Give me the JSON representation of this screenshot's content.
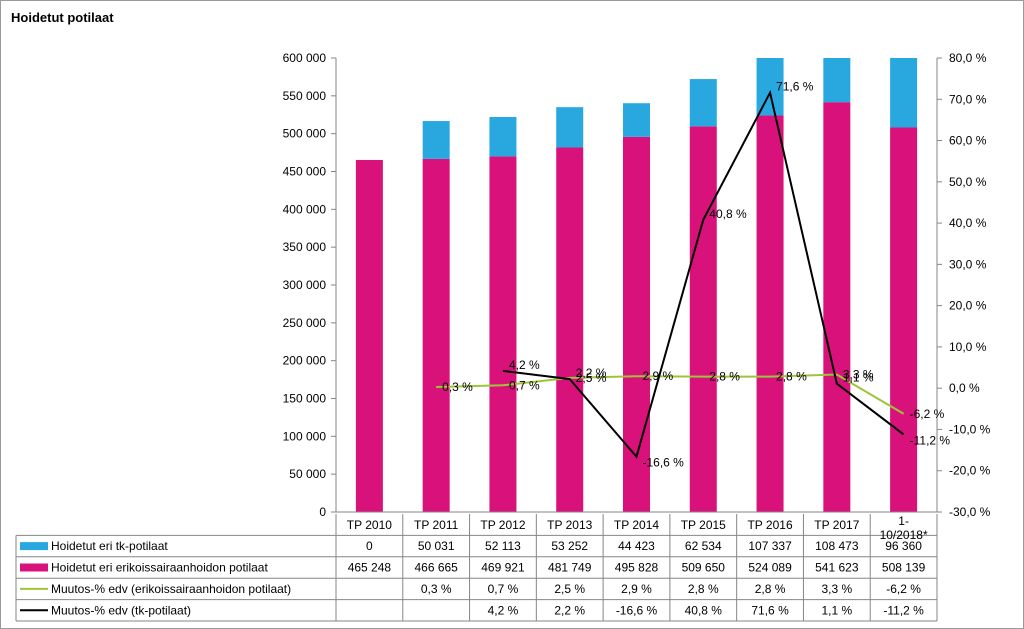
{
  "chart_data": {
    "type": "bar",
    "title": "Hoidetut potilaat",
    "categories": [
      "TP 2010",
      "TP 2011",
      "TP 2012",
      "TP 2013",
      "TP 2014",
      "TP 2015",
      "TP 2016",
      "TP 2017",
      "1-10/2018*"
    ],
    "left_axis": {
      "ylim": [
        0,
        600000
      ],
      "ticks": [
        "0",
        "50 000",
        "100 000",
        "150 000",
        "200 000",
        "250 000",
        "300 000",
        "350 000",
        "400 000",
        "450 000",
        "500 000",
        "550 000",
        "600 000"
      ]
    },
    "right_axis": {
      "ylim": [
        -30,
        80
      ],
      "ticks": [
        "-30,0 %",
        "-20,0 %",
        "-10,0 %",
        "0,0 %",
        "10,0 %",
        "20,0 %",
        "30,0 %",
        "40,0 %",
        "50,0 %",
        "60,0 %",
        "70,0 %",
        "80,0 %"
      ]
    },
    "series": [
      {
        "name": "Hoidetut eri tk-potilaat",
        "type": "stacked-bar",
        "color": "#29a8e0",
        "values": [
          0,
          50031,
          52113,
          53252,
          44423,
          62534,
          107337,
          108473,
          96360
        ],
        "table": [
          "0",
          "50 031",
          "52 113",
          "53 252",
          "44 423",
          "62 534",
          "107 337",
          "108 473",
          "96 360"
        ]
      },
      {
        "name": "Hoidetut eri erikoissairaanhoidon potilaat",
        "type": "stacked-bar",
        "color": "#d9117a",
        "values": [
          465248,
          466665,
          469921,
          481749,
          495828,
          509650,
          524089,
          541623,
          508139
        ],
        "table": [
          "465 248",
          "466 665",
          "469 921",
          "481 749",
          "495 828",
          "509 650",
          "524 089",
          "541 623",
          "508 139"
        ]
      },
      {
        "name": "Muutos-% edv (erikoissairaanhoidon potilaat)",
        "type": "line",
        "axis": "right",
        "color": "#9ec43a",
        "values": [
          null,
          0.3,
          0.7,
          2.5,
          2.9,
          2.8,
          2.8,
          3.3,
          -6.2
        ],
        "labels": [
          "",
          "0,3 %",
          "0,7 %",
          "2,5 %",
          "2,9 %",
          "2,8 %",
          "2,8 %",
          "3,3 %",
          "-6,2 %"
        ]
      },
      {
        "name": "Muutos-% edv (tk-potilaat)",
        "type": "line",
        "axis": "right",
        "color": "#000000",
        "values": [
          null,
          null,
          4.2,
          2.2,
          -16.6,
          40.8,
          71.6,
          1.1,
          -11.2
        ],
        "labels": [
          "",
          "",
          "4,2 %",
          "2,2 %",
          "-16,6 %",
          "40,8 %",
          "71,6 %",
          "1,1 %",
          "-11,2 %"
        ]
      }
    ],
    "grid": false,
    "legend": "table-below"
  }
}
